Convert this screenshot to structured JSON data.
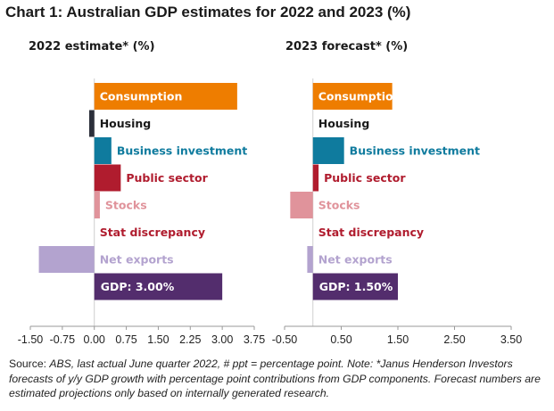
{
  "title": "Chart 1: Australian GDP estimates for 2022 and 2023 (%)",
  "source": {
    "lead": "Source: ",
    "text": "ABS, last actual June quarter 2022, # ppt = percentage point. Note: *Janus Henderson Investors forecasts of y/y GDP growth with percentage point contributions from GDP components. Forecast numbers are estimated projections only based on internally generated research."
  },
  "colors": {
    "consumption": "#ee7d00",
    "housing": "#2b2f3a",
    "business_investment": "#0f7b9e",
    "public_sector": "#b01c2e",
    "stocks": "#e0939b",
    "stat_discrepancy": "#b01c2e",
    "net_exports": "#b3a3cf",
    "gdp": "#532d6d",
    "axis": "#999999"
  },
  "chart_data": [
    {
      "type": "bar",
      "orientation": "horizontal",
      "title": "2022 estimate* (%)",
      "categories": [
        "Consumption",
        "Housing",
        "Business investment",
        "Public sector",
        "Stocks",
        "Stat discrepancy",
        "Net exports",
        "GDP: 3.00%"
      ],
      "values": [
        3.35,
        -0.12,
        0.4,
        0.62,
        0.13,
        0.0,
        -1.3,
        3.0
      ],
      "xlim": [
        -1.5,
        3.75
      ],
      "xticks": [
        "-1.50",
        "-0.75",
        "0.00",
        "0.75",
        "1.50",
        "2.25",
        "3.00",
        "3.75"
      ],
      "tickvals": [
        -1.5,
        -0.75,
        0,
        0.75,
        1.5,
        2.25,
        3.0,
        3.75
      ]
    },
    {
      "type": "bar",
      "orientation": "horizontal",
      "title": "2023 forecast* (%)",
      "categories": [
        "Consumption",
        "Housing",
        "Business investment",
        "Public sector",
        "Stocks",
        "Stat discrepancy",
        "Net exports",
        "GDP: 1.50%"
      ],
      "values": [
        1.4,
        0.0,
        0.55,
        0.1,
        -0.4,
        0.0,
        -0.1,
        1.5
      ],
      "xlim": [
        -0.5,
        3.5
      ],
      "xticks": [
        "-0.50",
        "0.50",
        "1.50",
        "2.50",
        "3.50"
      ],
      "tickvals": [
        -0.5,
        0.5,
        1.5,
        2.5,
        3.5
      ]
    }
  ]
}
